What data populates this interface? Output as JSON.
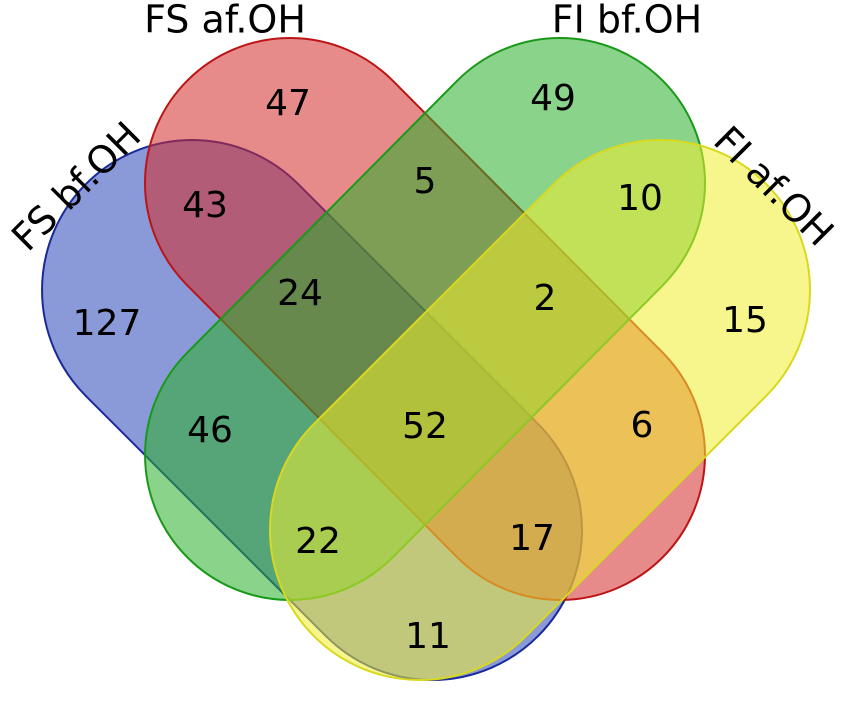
{
  "sets": [
    {
      "label": "FS bf.OH"
    },
    {
      "label": "FS af.OH"
    },
    {
      "label": "FI bf.OH"
    },
    {
      "label": "FI af.OH"
    }
  ],
  "regions": [
    {
      "value": 47
    },
    {
      "value": 49
    },
    {
      "value": 43
    },
    {
      "value": 5
    },
    {
      "value": 10
    },
    {
      "value": 127
    },
    {
      "value": 24
    },
    {
      "value": 2
    },
    {
      "value": 15
    },
    {
      "value": 46
    },
    {
      "value": 52
    },
    {
      "value": 6
    },
    {
      "value": 22
    },
    {
      "value": 17
    },
    {
      "value": 11
    }
  ]
}
